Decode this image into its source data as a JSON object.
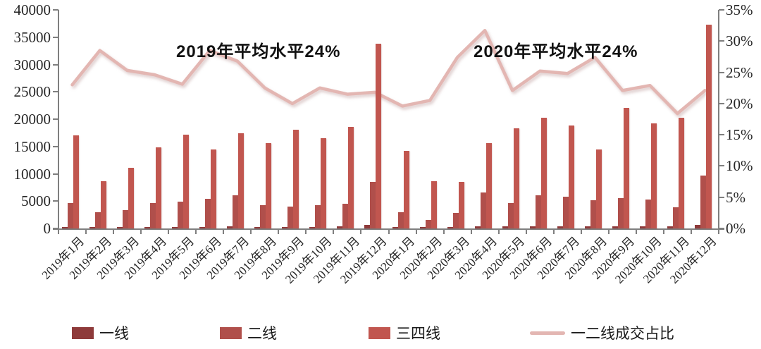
{
  "chart_data": {
    "type": "bar",
    "subtype": "grouped-bars-with-line-overlay",
    "title": "",
    "categories": [
      "2019年1月",
      "2019年2月",
      "2019年3月",
      "2019年4月",
      "2019年5月",
      "2019年6月",
      "2019年7月",
      "2019年8月",
      "2019年9月",
      "2019年10月",
      "2019年11月",
      "2019年12月",
      "2020年1月",
      "2020年2月",
      "2020年3月",
      "2020年4月",
      "2020年5月",
      "2020年6月",
      "2020年7月",
      "2020年8月",
      "2020年9月",
      "2020年10月",
      "2020年11月",
      "2020年12月"
    ],
    "series": [
      {
        "name": "一线",
        "type": "bar",
        "axis": "left",
        "color": "#8e3a3a",
        "values": [
          300,
          250,
          250,
          300,
          150,
          300,
          350,
          200,
          300,
          200,
          350,
          600,
          250,
          300,
          150,
          350,
          450,
          450,
          450,
          350,
          450,
          350,
          450,
          600
        ]
      },
      {
        "name": "二线",
        "type": "bar",
        "axis": "left",
        "color": "#b04f4b",
        "values": [
          4600,
          3000,
          3300,
          4600,
          4900,
          5400,
          6000,
          4200,
          4000,
          4300,
          4500,
          8500,
          3000,
          1600,
          2800,
          6600,
          4600,
          6100,
          5800,
          5100,
          5600,
          5300,
          3900,
          9700
        ]
      },
      {
        "name": "三四线",
        "type": "bar",
        "axis": "left",
        "color": "#c1564f",
        "values": [
          17000,
          8600,
          11100,
          14900,
          17200,
          14400,
          17400,
          15600,
          18000,
          16500,
          18600,
          33800,
          14200,
          8600,
          8500,
          15600,
          18300,
          20200,
          18900,
          14500,
          22000,
          19200,
          20200,
          37300
        ]
      },
      {
        "name": "一二线成交占比",
        "type": "line",
        "axis": "right",
        "unit": "%",
        "color": "#e3b6b2",
        "values": [
          23.0,
          28.5,
          25.3,
          24.6,
          23.1,
          28.5,
          26.8,
          22.5,
          20.0,
          22.5,
          21.5,
          21.8,
          19.6,
          20.5,
          27.4,
          31.7,
          22.1,
          25.2,
          24.8,
          27.4,
          22.1,
          22.9,
          18.4,
          22.1
        ]
      }
    ],
    "left_axis": {
      "min": 0,
      "max": 40000,
      "step": 5000,
      "tick_labels": [
        "0",
        "5000",
        "10000",
        "15000",
        "20000",
        "25000",
        "30000",
        "35000",
        "40000"
      ]
    },
    "right_axis": {
      "min": 0,
      "max": 35,
      "step": 5,
      "tick_labels": [
        "0%",
        "5%",
        "10%",
        "15%",
        "20%",
        "25%",
        "30%",
        "35%"
      ]
    },
    "annotations": [
      {
        "text": "2019年平均水平24%"
      },
      {
        "text": "2020年平均水平24%"
      }
    ],
    "legend": [
      {
        "label": "一线",
        "swatch": "bar",
        "color": "#8e3a3a"
      },
      {
        "label": "二线",
        "swatch": "bar",
        "color": "#b04f4b"
      },
      {
        "label": "三四线",
        "swatch": "bar",
        "color": "#c1564f"
      },
      {
        "label": "一二线成交占比",
        "swatch": "line",
        "color": "#e3b6b2"
      }
    ],
    "grid": "off",
    "legend_position": "bottom"
  }
}
